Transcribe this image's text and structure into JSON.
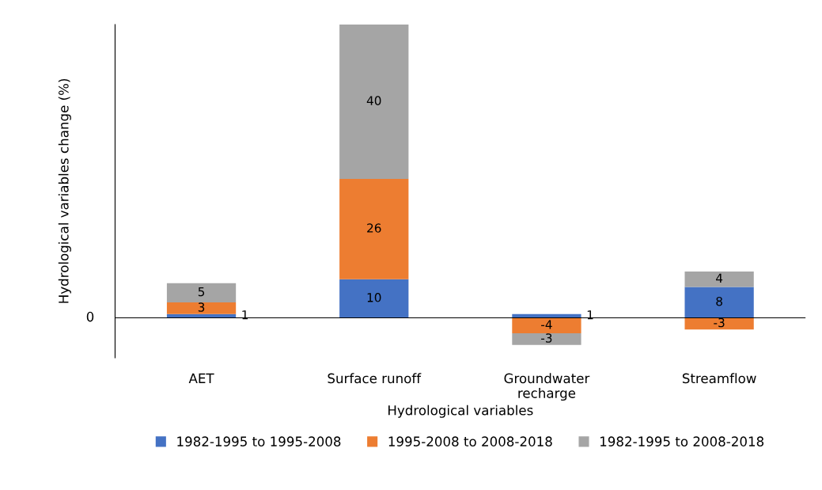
{
  "chart_data": {
    "type": "bar",
    "stacked": true,
    "data_labels": true,
    "xlabel": "Hydrological variables",
    "ylabel": "Hydrological variables change (%)",
    "categories": [
      "AET",
      "Surface runoff",
      "Groundwater\nrecharge",
      "Streamflow"
    ],
    "series": [
      {
        "name": "1982-1995 to 1995-2008",
        "color": "#4472c4",
        "values": [
          1,
          10,
          1,
          8
        ]
      },
      {
        "name": "1995-2008 to 2008-2018",
        "color": "#ed7d31",
        "values": [
          3,
          26,
          -4,
          -3
        ]
      },
      {
        "name": "1982-1995 to 2008-2018",
        "color": "#a5a5a5",
        "values": [
          5,
          40,
          -3,
          4
        ]
      }
    ],
    "annotations": [
      "0"
    ],
    "legend": "bottom",
    "grid": false
  }
}
